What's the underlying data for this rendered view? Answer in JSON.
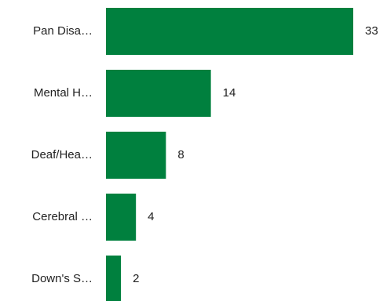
{
  "chart_data": {
    "type": "bar",
    "orientation": "horizontal",
    "categories": [
      "Pan Disa…",
      "Mental H…",
      "Deaf/Hea…",
      "Cerebral …",
      "Down's S…"
    ],
    "values": [
      33,
      14,
      8,
      4,
      2
    ],
    "data_labels": [
      "33",
      "14",
      "8",
      "4",
      "2"
    ],
    "title": "",
    "xlabel": "",
    "ylabel": "",
    "xlim": [
      0,
      33
    ],
    "grid": false,
    "legend": "none",
    "bar_color": "#00803e"
  }
}
